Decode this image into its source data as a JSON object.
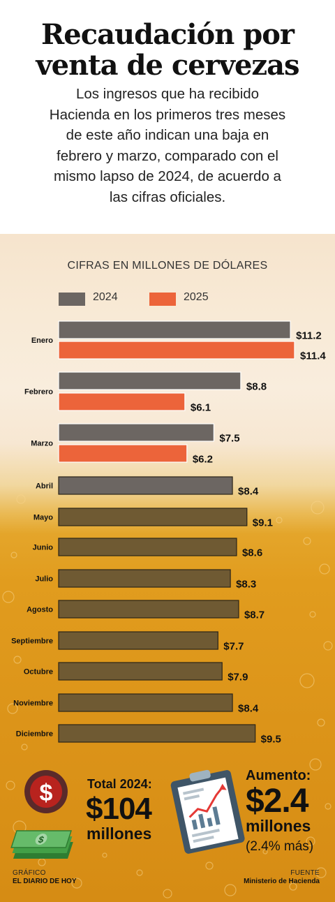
{
  "header": {
    "title_line1": "Recaudación por",
    "title_line2": "venta de cervezas",
    "subtitle_lines": [
      "Los ingresos que ha recibido",
      "Hacienda en los primeros tres meses",
      "de este año indican una baja en",
      "febrero y marzo, comparado con el",
      "mismo lapso de 2024, de acuerdo a",
      "las cifras oficiales."
    ]
  },
  "chart_subtitle": "CIFRAS EN MILLONES DE DÓLARES",
  "colors": {
    "series_2024": "#6c6662",
    "series_2025": "#ec643a",
    "series_2024_lower": "#6f5a33"
  },
  "chart_data": {
    "type": "bar",
    "orientation": "horizontal",
    "categories": [
      "Enero",
      "Febrero",
      "Marzo",
      "Abril",
      "Mayo",
      "Junio",
      "Julio",
      "Agosto",
      "Septiembre",
      "Octubre",
      "Noviembre",
      "Diciembre"
    ],
    "series": [
      {
        "name": "2024",
        "values": [
          11.2,
          8.8,
          7.5,
          8.4,
          9.1,
          8.6,
          8.3,
          8.7,
          7.7,
          7.9,
          8.4,
          9.5
        ]
      },
      {
        "name": "2025",
        "values": [
          11.4,
          6.1,
          6.2,
          null,
          null,
          null,
          null,
          null,
          null,
          null,
          null,
          null
        ]
      }
    ],
    "data_labels": {
      "2024": [
        "$11.2",
        "$8.8",
        "$7.5",
        "$8.4",
        "$9.1",
        "$8.6",
        "$8.3",
        "$8.7",
        "$7.7",
        "$7.9",
        "$8.4",
        "$9.5"
      ],
      "2025": [
        "$11.4",
        "$6.1",
        "$6.2"
      ]
    },
    "xlim": [
      0,
      11.4
    ],
    "legend_position": "top-left",
    "grid": false
  },
  "summary": {
    "total_label": "Total 2024:",
    "total_value": "$104",
    "total_unit": "millones",
    "increase_label": "Aumento:",
    "increase_value": "$2.4",
    "increase_unit": "millones",
    "increase_pct": "(2.4% más)"
  },
  "credits": {
    "graphic_label": "GRÁFICO",
    "graphic_source": "EL DIARIO DE HOY",
    "source_label": "FUENTE",
    "source_name": "Ministerio de Hacienda"
  },
  "icons": [
    "dollar-coin-icon",
    "money-bills-icon",
    "clipboard-chart-icon"
  ]
}
